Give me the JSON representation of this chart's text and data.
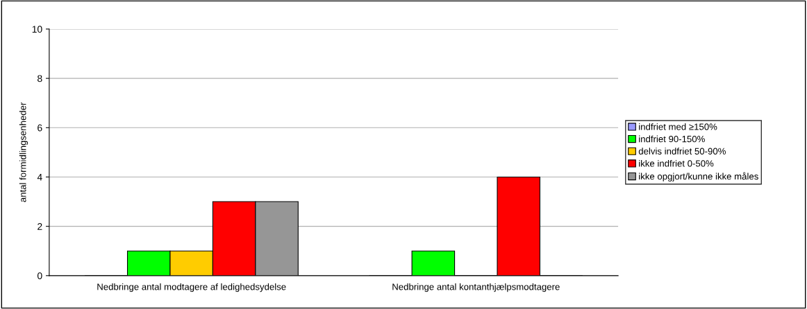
{
  "chart_data": {
    "type": "bar",
    "ylabel": "antal formidlingsenheder",
    "categories": [
      "Nedbringe antal modtagere af ledighedsydelse",
      "Nedbringe antal kontanthjælpsmodtagere"
    ],
    "series": [
      {
        "name": "indfriet med ≥150%",
        "color": "#9999ff",
        "values": [
          0,
          0
        ]
      },
      {
        "name": "indfriet 90-150%",
        "color": "#00ff00",
        "values": [
          1,
          1
        ]
      },
      {
        "name": "delvis indfriet 50-90%",
        "color": "#ffcc00",
        "values": [
          1,
          0
        ]
      },
      {
        "name": "ikke indfriet 0-50%",
        "color": "#ff0000",
        "values": [
          3,
          4
        ]
      },
      {
        "name": "ikke opgjort/kunne ikke måles",
        "color": "#969696",
        "values": [
          3,
          0
        ]
      }
    ],
    "ylim": [
      0,
      10
    ],
    "yticks": [
      0,
      2,
      4,
      6,
      8,
      10
    ],
    "grid": "y",
    "legend": "right"
  }
}
